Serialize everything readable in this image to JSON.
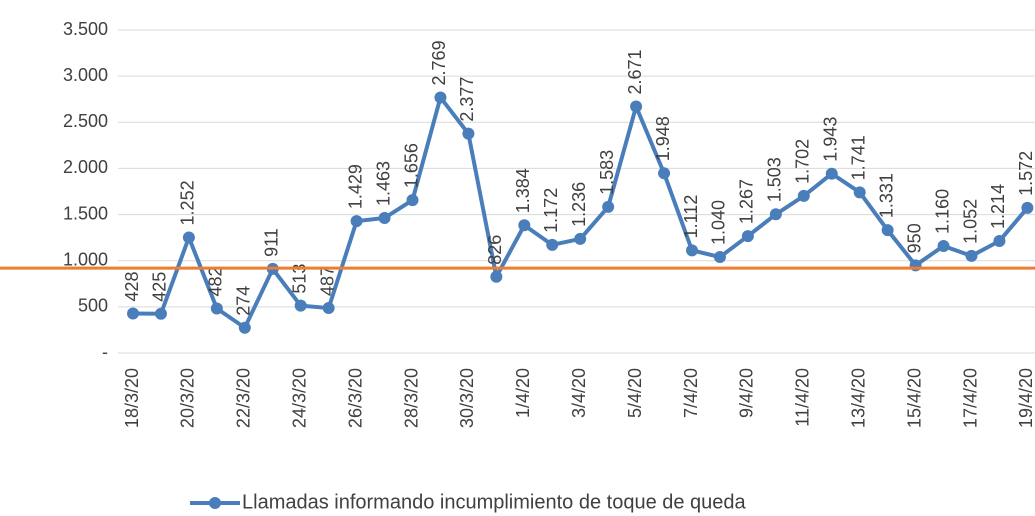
{
  "chart_data": {
    "type": "line",
    "categories": [
      "18/3/20",
      null,
      "20/3/20",
      null,
      "22/3/20",
      null,
      "24/3/20",
      null,
      "26/3/20",
      null,
      "28/3/20",
      null,
      "30/3/20",
      null,
      "1/4/20",
      null,
      "3/4/20",
      null,
      "5/4/20",
      null,
      "7/4/20",
      null,
      "9/4/20",
      null,
      "11/4/20",
      null,
      "13/4/20",
      null,
      "15/4/20",
      null,
      "17/4/20",
      null,
      "19/4/20"
    ],
    "series": [
      {
        "name": "Llamadas informando incumplimiento de toque de queda",
        "color": "#4a7ebb",
        "values": [
          428,
          425,
          1252,
          482,
          274,
          911,
          513,
          487,
          1429,
          1463,
          1656,
          2769,
          2377,
          826,
          1384,
          1172,
          1236,
          1583,
          2671,
          1948,
          1112,
          1040,
          1267,
          1503,
          1702,
          1943,
          1741,
          1331,
          950,
          1160,
          1052,
          1214,
          1572
        ],
        "value_labels": [
          "428",
          "425",
          "1.252",
          "482",
          "274",
          "911",
          "513",
          "487",
          "1.429",
          "1.463",
          "1.656",
          "2.769",
          "2.377",
          "826",
          "1.384",
          "1.172",
          "1.236",
          "1.583",
          "2.671",
          "1.948",
          "1.112",
          "1.040",
          "1.267",
          "1.503",
          "1.702",
          "1.943",
          "1.741",
          "1.331",
          "950",
          "1.160",
          "1.052",
          "1.214",
          "1.572"
        ]
      }
    ],
    "ylim": [
      0,
      3500
    ],
    "yticks": [
      {
        "value": 0,
        "label": "-"
      },
      500,
      {
        "value": 1000,
        "label": "1.000"
      },
      {
        "value": 1500,
        "label": "1.500"
      },
      {
        "value": 2000,
        "label": "2.000"
      },
      {
        "value": 2500,
        "label": "2.500"
      },
      {
        "value": 3000,
        "label": "3.000"
      },
      {
        "value": 3500,
        "label": "3.500"
      }
    ],
    "grid": true,
    "reference_line": {
      "value": 920,
      "color": "#ed7d31"
    },
    "legend": "bottom"
  }
}
